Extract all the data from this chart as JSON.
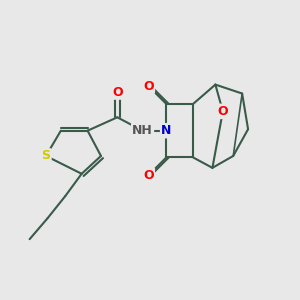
{
  "background_color": "#e8e8e8",
  "bond_color": "#3a5a4a",
  "atom_colors": {
    "O": "#ff0000",
    "N": "#0000cc",
    "S": "#cccc00",
    "H": "#555555",
    "C": "#3a5a4a"
  },
  "font_size_atom": 9,
  "fig_width": 3.0,
  "fig_height": 3.0,
  "dpi": 100
}
